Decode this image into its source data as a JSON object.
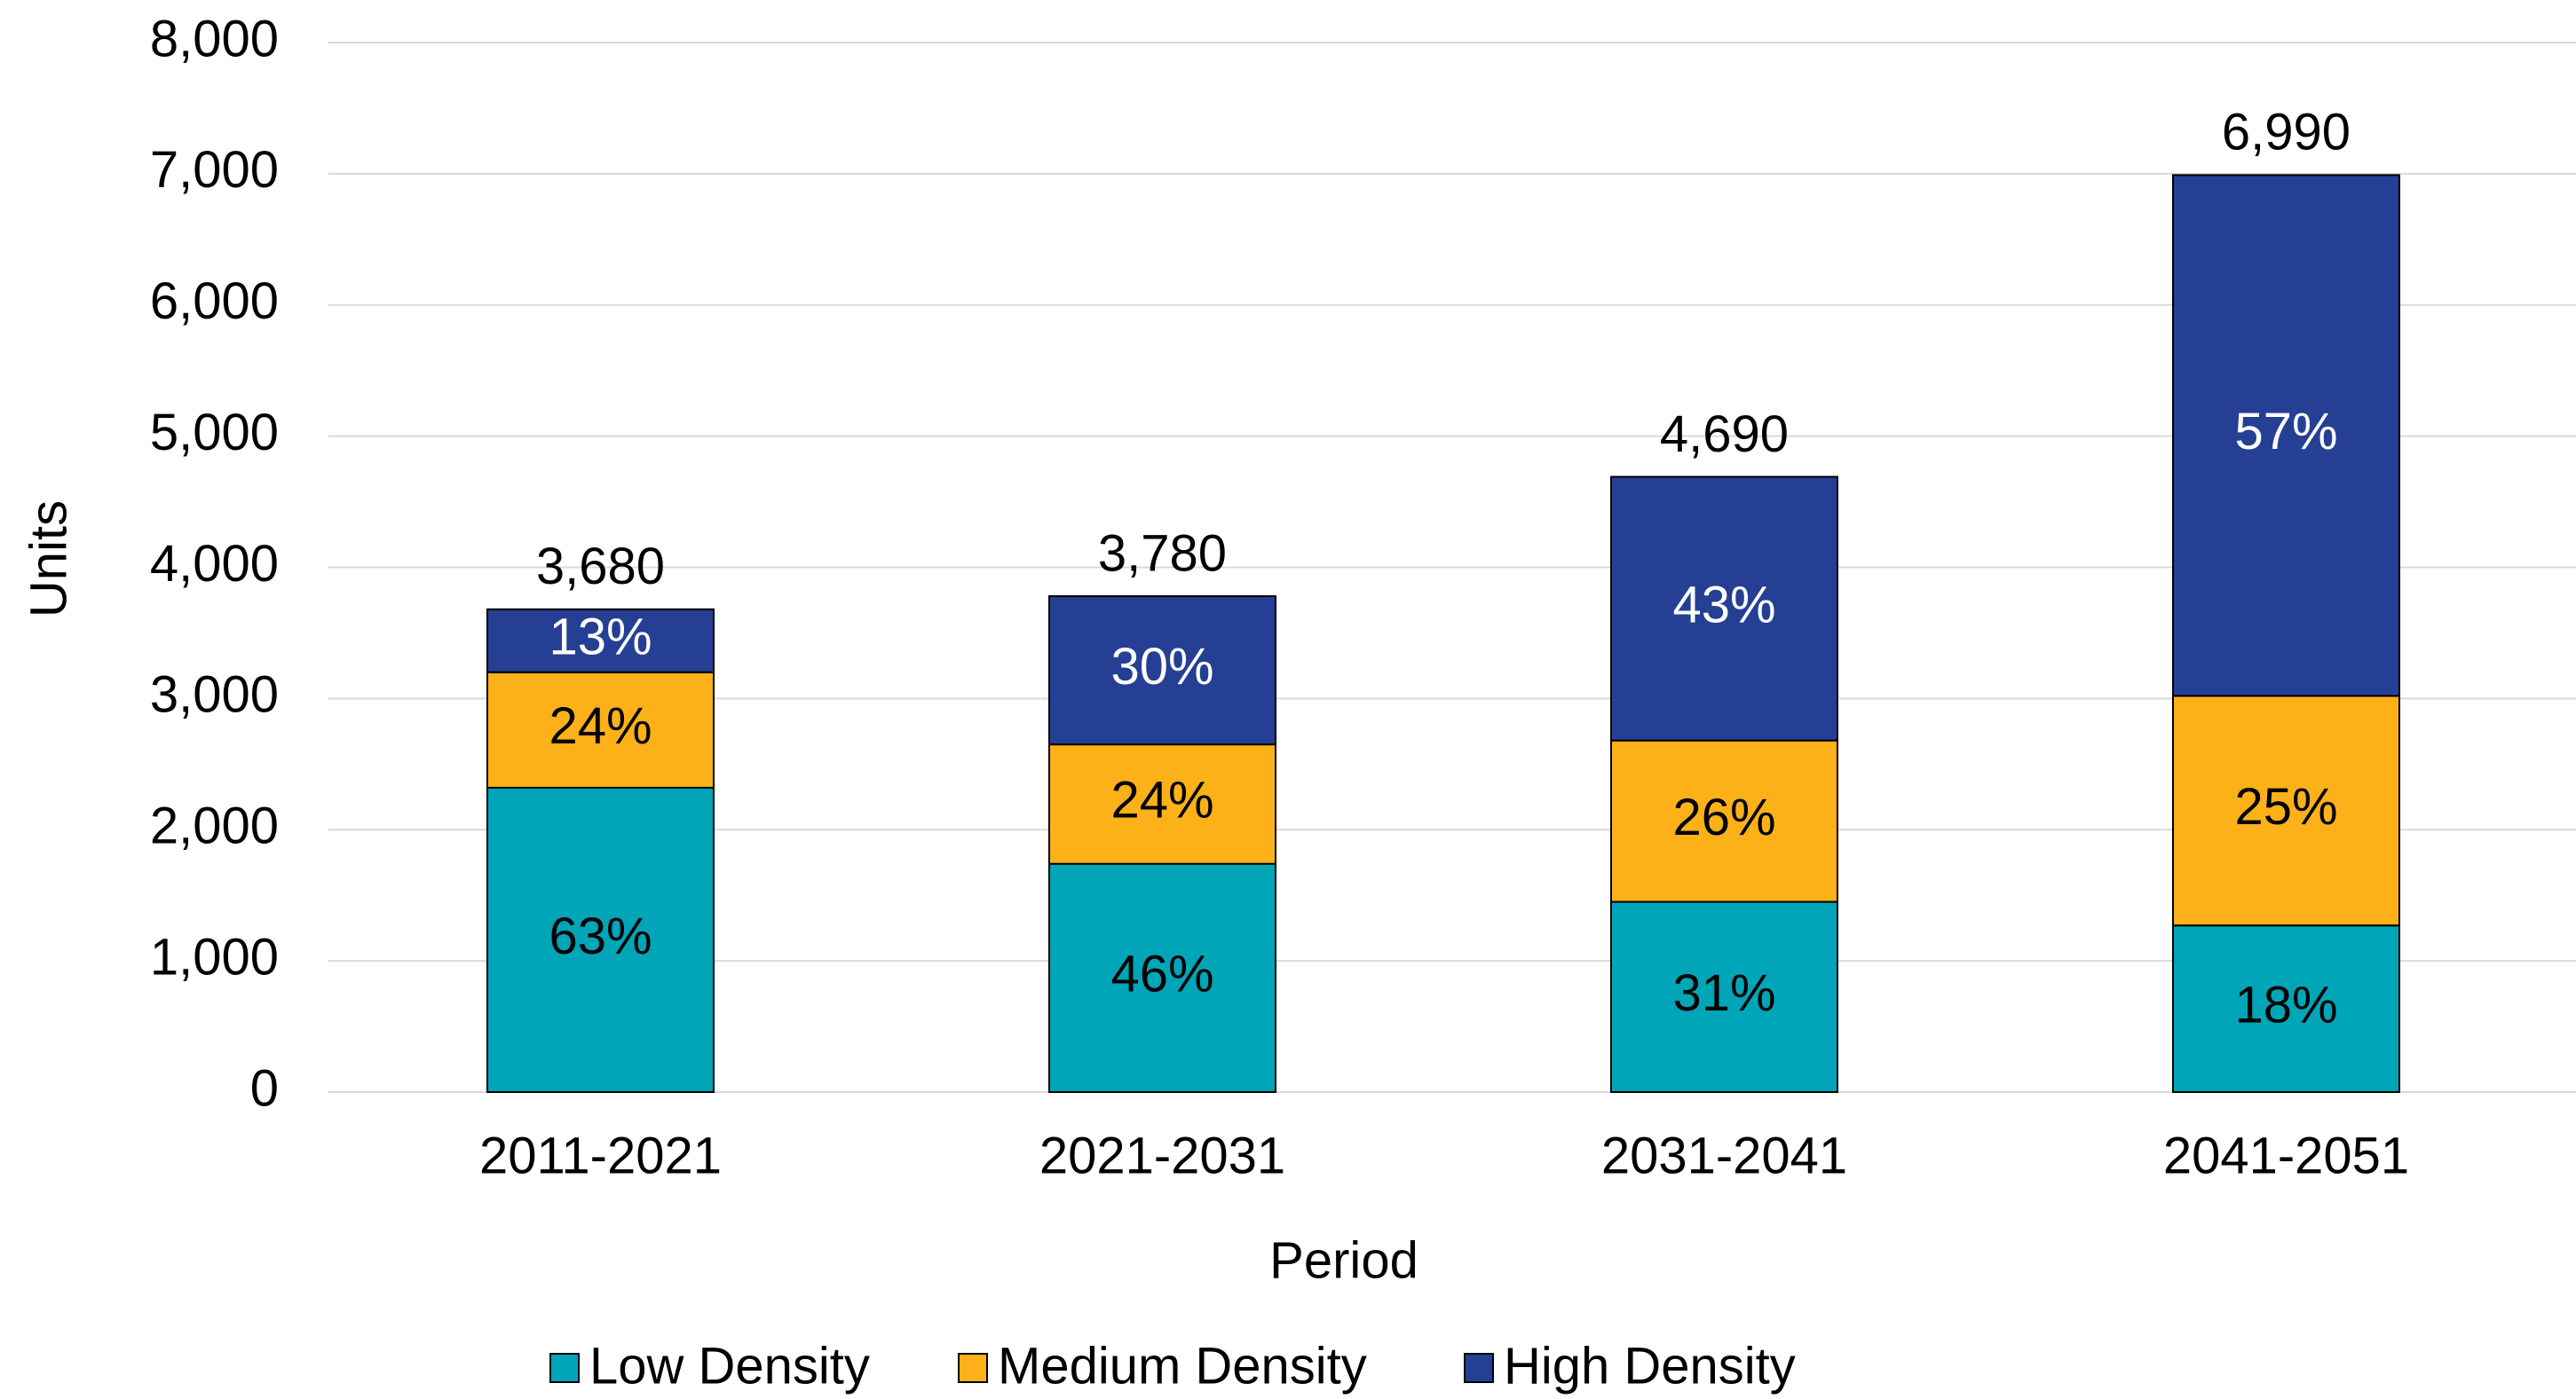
{
  "chart_data": {
    "type": "stacked_bar",
    "x_label": "Period",
    "y_label": "Units",
    "categories": [
      "2011-2021",
      "2021-2031",
      "2031-2041",
      "2041-2051"
    ],
    "series": [
      {
        "name": "Low Density",
        "color": "#00a5b8",
        "label_color": "#000000",
        "values": [
          2320,
          1740,
          1450,
          1270
        ],
        "labels": [
          "63%",
          "46%",
          "31%",
          "18%"
        ]
      },
      {
        "name": "Medium Density",
        "color": "#fbb117",
        "label_color": "#000000",
        "values": [
          880,
          910,
          1230,
          1750
        ],
        "labels": [
          "24%",
          "24%",
          "26%",
          "25%"
        ]
      },
      {
        "name": "High Density",
        "color": "#253f94",
        "label_color": "#ffffff",
        "values": [
          480,
          1130,
          2010,
          3970
        ],
        "labels": [
          "13%",
          "30%",
          "43%",
          "57%"
        ]
      }
    ],
    "total_labels": [
      "3,680",
      "3,780",
      "4,690",
      "6,990"
    ],
    "ylim": [
      0,
      8000
    ],
    "yticks": [
      0,
      {
        "value": 1000,
        "label": "1,000"
      },
      {
        "value": 2000,
        "label": "2,000"
      },
      {
        "value": 3000,
        "label": "3,000"
      },
      {
        "value": 4000,
        "label": "4,000"
      },
      {
        "value": 5000,
        "label": "5,000"
      },
      {
        "value": 6000,
        "label": "6,000"
      },
      {
        "value": 7000,
        "label": "7,000"
      },
      {
        "value": 8000,
        "label": "8,000"
      }
    ],
    "grid": true,
    "legend": "bottom"
  }
}
